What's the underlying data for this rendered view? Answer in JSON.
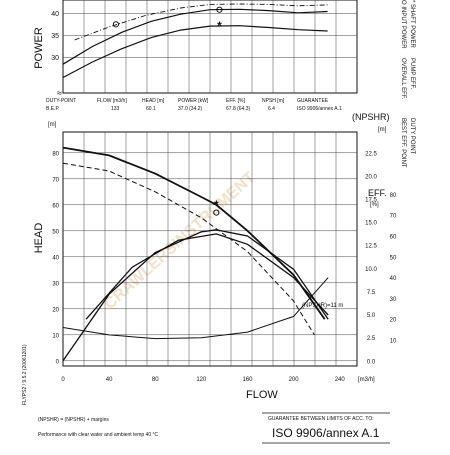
{
  "chart_data": [
    {
      "type": "line",
      "ylabel": "POWER",
      "yticks": [
        30,
        35,
        40
      ],
      "ylim": [
        22,
        43
      ],
      "xlim": [
        0,
        250
      ],
      "series": [
        {
          "x": [
            0,
            25,
            50,
            75,
            100,
            125,
            150,
            175,
            200,
            225
          ],
          "y": [
            25.5,
            29,
            32,
            34.5,
            36.2,
            37.1,
            37.2,
            36.8,
            36.3,
            36
          ]
        },
        {
          "x": [
            0,
            25,
            50,
            75,
            100,
            125,
            150,
            175,
            200,
            225
          ],
          "y": [
            28.5,
            32.5,
            35.7,
            38.2,
            39.8,
            40.8,
            40.9,
            40.6,
            40.1,
            40.4
          ]
        },
        {
          "x": [
            10,
            40,
            70,
            100,
            125,
            150,
            175,
            200,
            225
          ],
          "y": [
            34,
            37,
            39.5,
            41.2,
            42,
            42.1,
            42,
            41.7,
            41.9
          ]
        }
      ],
      "markers": [
        {
          "x": 133,
          "y": 40.8,
          "symbol": "o"
        },
        {
          "x": 133,
          "y": 37.1,
          "symbol": "*"
        },
        {
          "x": 45,
          "y": 37.5,
          "symbol": "o"
        }
      ],
      "legend": [
        "O INPUT POWER",
        "* SHAFT POWER"
      ]
    },
    {
      "type": "line",
      "ylabel": "HEAD",
      "y2label": "(NPSHR)",
      "y3label": "EFF.",
      "y3unit": "[%]",
      "xlabel": "FLOW",
      "xunit": "[m3/h]",
      "yunit": "[m]",
      "y2unit": "[m]",
      "xticks": [
        0,
        40,
        80,
        120,
        160,
        200,
        240
      ],
      "xlim": [
        0,
        255
      ],
      "yticks": [
        0,
        10,
        20,
        30,
        40,
        50,
        60,
        70,
        80
      ],
      "ylim": [
        -2,
        88
      ],
      "y2ticks": [
        "0.0",
        "2.5",
        "5.0",
        "7.5",
        "10.0",
        "12.5",
        "15.0",
        "17.5",
        "20.0",
        "22.5"
      ],
      "y3ticks": [
        10,
        20,
        30,
        40,
        50,
        60,
        70,
        80
      ],
      "series": [
        {
          "name": "HEAD",
          "x": [
            0,
            40,
            80,
            120,
            133,
            160,
            200,
            227
          ],
          "y": [
            82,
            79,
            72,
            63,
            60,
            50,
            33,
            16
          ]
        },
        {
          "name": "HEAD",
          "x": [
            0,
            40,
            80,
            120,
            160,
            200,
            218
          ],
          "y": [
            76,
            73,
            65,
            55,
            42,
            23,
            10
          ]
        },
        {
          "name": "EFF.",
          "x": [
            0,
            40,
            80,
            120,
            133,
            160,
            200,
            230
          ],
          "y": [
            0,
            32,
            52,
            62,
            63,
            60,
            44,
            20
          ]
        },
        {
          "name": "EFF.",
          "x": [
            20,
            60,
            100,
            133,
            160,
            200,
            230
          ],
          "y": [
            20,
            45,
            58,
            61,
            56,
            40,
            22
          ]
        },
        {
          "name": "(NPSHR)",
          "x": [
            0,
            40,
            80,
            120,
            160,
            200,
            230
          ],
          "y": [
            3.6,
            2.8,
            2.4,
            2.5,
            3.1,
            4.8,
            9
          ]
        }
      ],
      "markers": [
        {
          "x": 133,
          "y": 60,
          "symbol": "*"
        },
        {
          "x": 133,
          "y": 57,
          "symbol": "o"
        }
      ],
      "annotations": [
        "(NPSHR)=11 m"
      ],
      "legend": [
        "OVERALL EFF.",
        "PUMP EFF.",
        "BEST EFF. POINT",
        "DUTY POINT"
      ]
    }
  ],
  "table": {
    "headers": [
      "DUTY-POINT",
      "FLOW [m3/h]",
      "HEAD [m]",
      "POWER [kW]",
      "EFF. [%]",
      "NPSH [m]",
      "GUARANTEE"
    ],
    "row_label": "B.E.P.",
    "values": [
      "133",
      "60.1",
      "37.0  (34.2)",
      "67.8  (64.3)",
      "6.4",
      "ISO 9906/annex A.1"
    ]
  },
  "side_code": "FLYPS2 / 9.5.2 (20061201)",
  "footer": {
    "note1": "(NPSHR) = (NPSHR) + margins",
    "note2": "Performance with clear water and ambient temp 40 °C",
    "guarantee_label": "GUARANTEE BETWEEN LIMITS OF ACC. TO:",
    "guarantee_value": "ISO 9906/annex A.1"
  },
  "colors": {
    "ink": "#111111",
    "grid": "#444444",
    "watermark": "#e8c9a0"
  },
  "watermark": "CRAWLERSINSTRUMENT"
}
